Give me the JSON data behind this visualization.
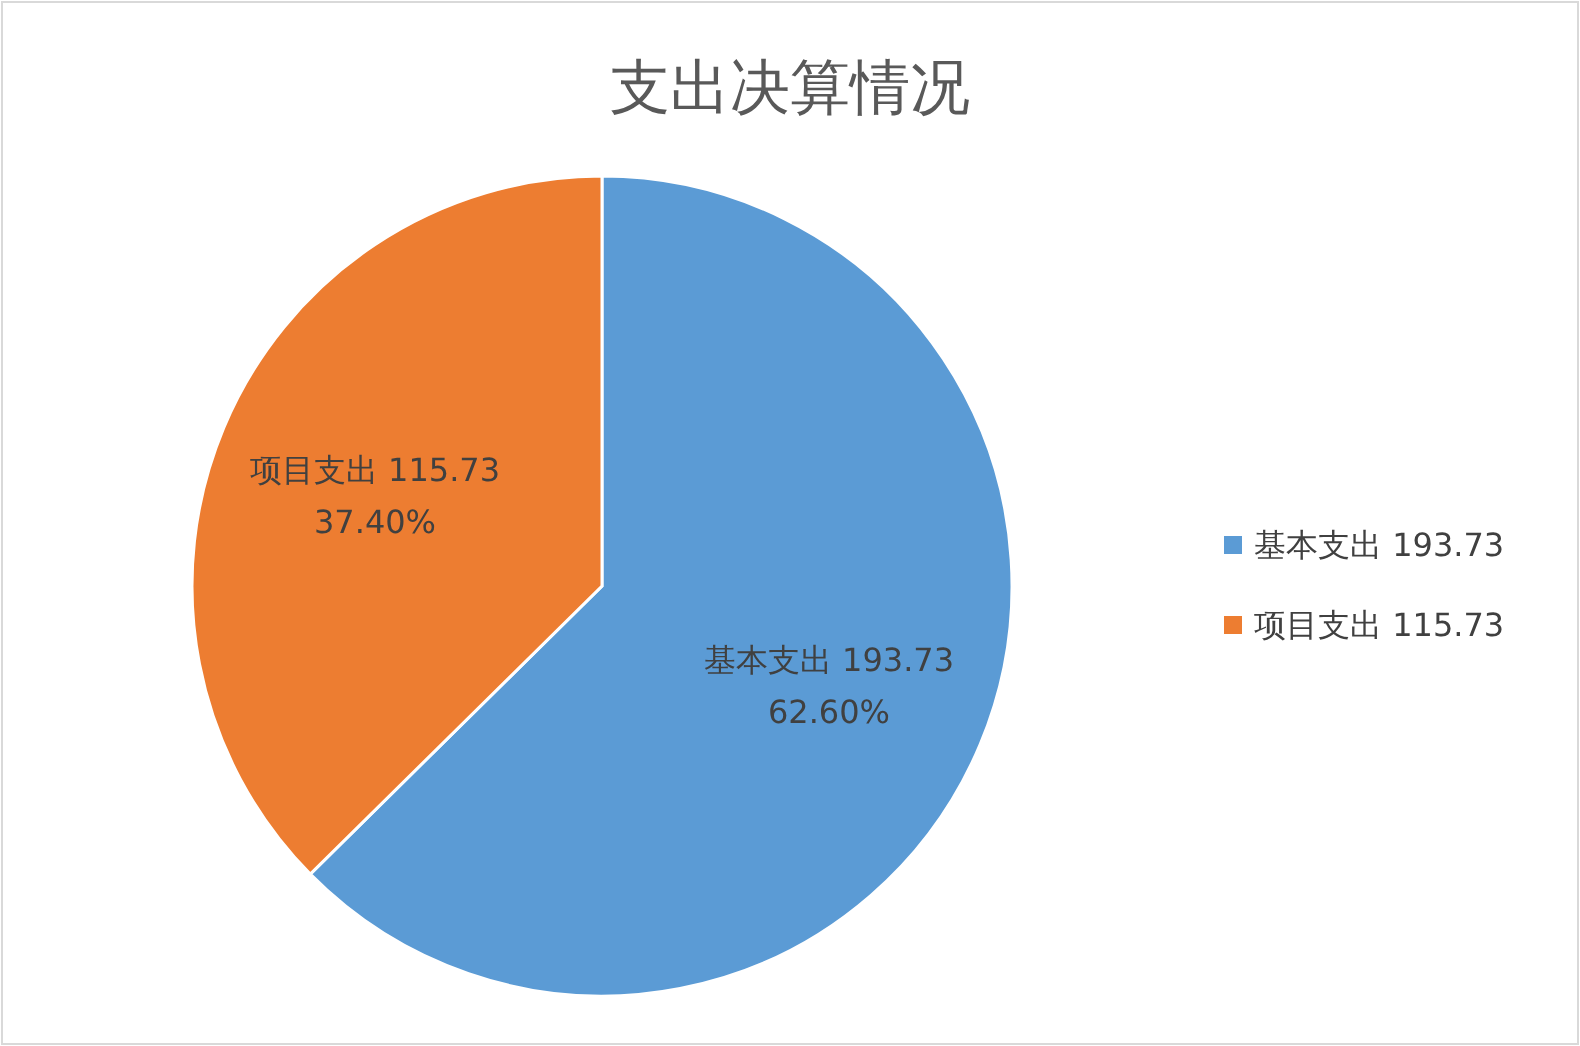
{
  "chart_data": {
    "type": "pie",
    "title": "支出决算情况",
    "categories": [
      "基本支出 193.73",
      "项目支出 115.73"
    ],
    "values": [
      62.6,
      37.4
    ],
    "colors": [
      "#5b9bd5",
      "#ed7d31"
    ],
    "value_labels": [
      "62.60%",
      "37.40%"
    ],
    "legend": "right"
  }
}
